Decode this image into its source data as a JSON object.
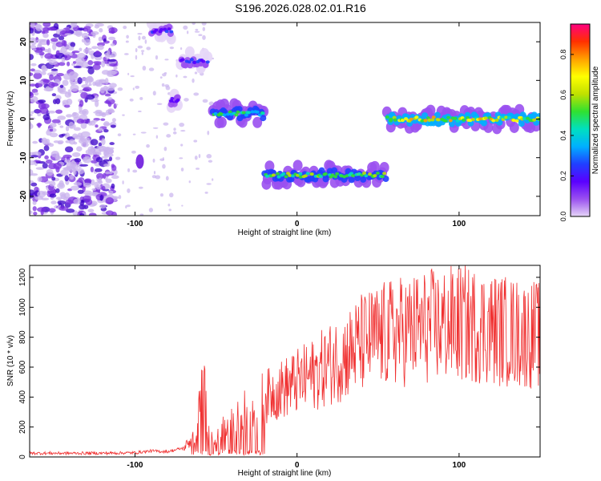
{
  "title": "S196.2026.028.02.01.R16",
  "colors": {
    "snr_line": "#f03030",
    "frame": "#000000",
    "scalogram_light": "#c9b3ee",
    "scalogram_mid": "#7b2fe0",
    "scalogram_dark": "#3a00c8"
  },
  "chart_data": [
    {
      "type": "heatmap",
      "xlabel": "Height of straight line (km)",
      "ylabel": "Frequency (Hz)",
      "xlim": [
        -165,
        150
      ],
      "ylim": [
        -25,
        25
      ],
      "x_ticks": [
        -100,
        0,
        100
      ],
      "y_ticks": [
        -20,
        -10,
        0,
        10,
        20
      ],
      "grid": false,
      "colorbar": {
        "label": "Normalized spectral amplitude",
        "range": [
          0.0,
          0.95
        ],
        "ticks": [
          0.0,
          0.2,
          0.4,
          0.6,
          0.8
        ],
        "tick_labels": [
          "0.0",
          "0.2",
          "0.4",
          "0.6",
          "0.8"
        ],
        "colormap": [
          "#e6d6f7",
          "#9a50f0",
          "#5a00ff",
          "#2040ff",
          "#00b0ff",
          "#00e0c0",
          "#30e030",
          "#c0e000",
          "#ffff00",
          "#ffa000",
          "#ff3000",
          "#ff0080"
        ]
      },
      "segments": [
        {
          "x": [
            -90,
            -77
          ],
          "freq": 23,
          "amplitude": 0.25
        },
        {
          "x": [
            -78,
            -73
          ],
          "freq": 5,
          "amplitude": 0.2
        },
        {
          "x": [
            -72,
            -55
          ],
          "freq": 15,
          "amplitude": 0.28
        },
        {
          "x": [
            -52,
            -20
          ],
          "freq": 1.5,
          "amplitude": 0.55
        },
        {
          "x": [
            -20,
            55
          ],
          "freq": -14.5,
          "amplitude": 0.65
        },
        {
          "x": [
            55,
            150
          ],
          "freq": 0,
          "amplitude": 0.75
        }
      ]
    },
    {
      "type": "line",
      "xlabel": "Height of straight line (km)",
      "ylabel": "SNR (10 * v/v)",
      "xlim": [
        -165,
        150
      ],
      "ylim": [
        0,
        1280
      ],
      "x_ticks": [
        -100,
        0,
        100
      ],
      "y_ticks": [
        0,
        200,
        400,
        600,
        800,
        1000,
        1200
      ],
      "grid": false,
      "series": [
        {
          "x": [
            -165,
            -140,
            -120,
            -100,
            -90,
            -80,
            -70,
            -62,
            -58,
            -55,
            -50,
            -45,
            -40,
            -35,
            -30,
            -20,
            -10,
            0,
            10,
            20,
            30,
            40,
            50,
            60,
            70,
            80,
            90,
            100,
            110,
            120,
            130,
            140,
            150
          ],
          "values": [
            25,
            25,
            25,
            28,
            40,
            35,
            60,
            150,
            550,
            180,
            120,
            200,
            250,
            280,
            350,
            400,
            450,
            500,
            550,
            620,
            680,
            760,
            800,
            830,
            850,
            870,
            880,
            890,
            880,
            860,
            840,
            820,
            820
          ]
        }
      ]
    }
  ]
}
